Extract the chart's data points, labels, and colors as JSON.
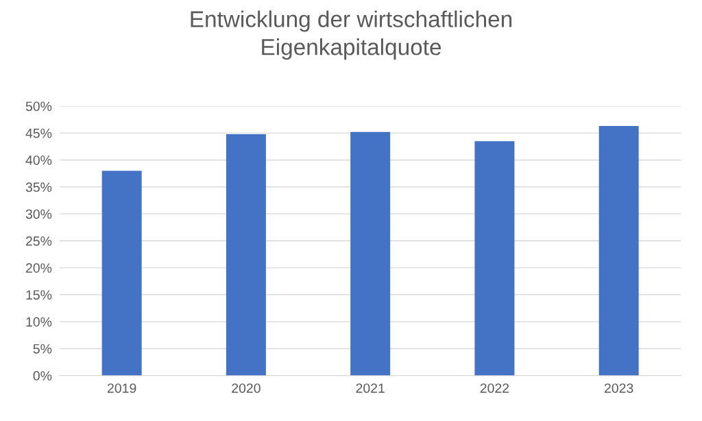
{
  "chart_data": {
    "type": "bar",
    "title": "Entwicklung der wirtschaftlichen\nEigenkapitalquote",
    "categories": [
      "2019",
      "2020",
      "2021",
      "2022",
      "2023"
    ],
    "values": [
      38.0,
      44.8,
      45.2,
      43.5,
      46.3
    ],
    "color": "#4472c4",
    "ylim": [
      0,
      50
    ],
    "yticks": [
      {
        "value": 0,
        "label": "0%"
      },
      {
        "value": 5,
        "label": "5%"
      },
      {
        "value": 10,
        "label": "10%"
      },
      {
        "value": 15,
        "label": "15%"
      },
      {
        "value": 20,
        "label": "20%"
      },
      {
        "value": 25,
        "label": "25%"
      },
      {
        "value": 30,
        "label": "30%"
      },
      {
        "value": 35,
        "label": "35%"
      },
      {
        "value": 40,
        "label": "40%"
      },
      {
        "value": 45,
        "label": "45%"
      },
      {
        "value": 50,
        "label": "50%"
      }
    ],
    "grid": "y"
  }
}
